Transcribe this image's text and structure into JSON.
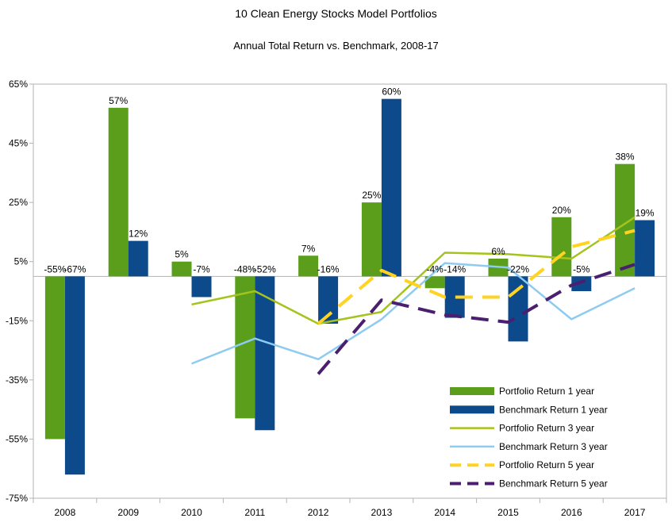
{
  "chart_data": {
    "type": "bar",
    "title": "10 Clean Energy Stocks Model Portfolios",
    "subtitle": "Annual Total Return vs. Benchmark, 2008-17",
    "xlabel": "",
    "ylabel": "",
    "ylim": [
      -75,
      65
    ],
    "yticks": [
      65,
      45,
      25,
      5,
      -15,
      -35,
      -55,
      -75
    ],
    "ytick_labels": [
      "65%",
      "45%",
      "25%",
      "5%",
      "-15%",
      "-35%",
      "-55%",
      "-75%"
    ],
    "grid": false,
    "legend_position": "bottom-right",
    "categories": [
      "2008",
      "2009",
      "2010",
      "2011",
      "2012",
      "2013",
      "2014",
      "2015",
      "2016",
      "2017"
    ],
    "series": [
      {
        "name": "Portfolio Return 1 year",
        "kind": "bar",
        "color": "#5a9e1c",
        "values": [
          -55,
          57,
          5,
          -48,
          7,
          25,
          -4,
          6,
          20,
          38
        ],
        "labels": [
          "-55%",
          "57%",
          "5%",
          "-48%",
          "7%",
          "25%",
          "-4%",
          "6%",
          "20%",
          "38%"
        ]
      },
      {
        "name": "Benchmark Return 1 year",
        "kind": "bar",
        "color": "#0d4a8c",
        "values": [
          -67,
          12,
          -7,
          -52,
          -16,
          60,
          -14,
          -22,
          -5,
          19
        ],
        "labels": [
          "-67%",
          "12%",
          "-7%",
          "-52%",
          "-16%",
          "60%",
          "-14%",
          "-22%",
          "-5%",
          "19%"
        ]
      },
      {
        "name": "Portfolio Return 3 year",
        "kind": "line",
        "color": "#a4c31c",
        "dash": "solid",
        "values": [
          null,
          null,
          -9.5,
          -5,
          -16,
          -12,
          8,
          7.5,
          6,
          20
        ]
      },
      {
        "name": "Benchmark Return 3 year",
        "kind": "line",
        "color": "#8ecbf2",
        "dash": "solid",
        "values": [
          null,
          null,
          -29.5,
          -21,
          -28,
          -14.5,
          4.5,
          3,
          -14.5,
          -4
        ]
      },
      {
        "name": "Portfolio Return 5 year",
        "kind": "line",
        "color": "#ffd320",
        "dash": "dashed",
        "values": [
          null,
          null,
          null,
          null,
          -16,
          2,
          -7,
          -7,
          10,
          15.5
        ]
      },
      {
        "name": "Benchmark Return 5 year",
        "kind": "line",
        "color": "#4b1f6f",
        "dash": "dashed",
        "values": [
          null,
          null,
          null,
          null,
          -33,
          -8,
          -13,
          -15.5,
          -3,
          4
        ]
      }
    ]
  }
}
